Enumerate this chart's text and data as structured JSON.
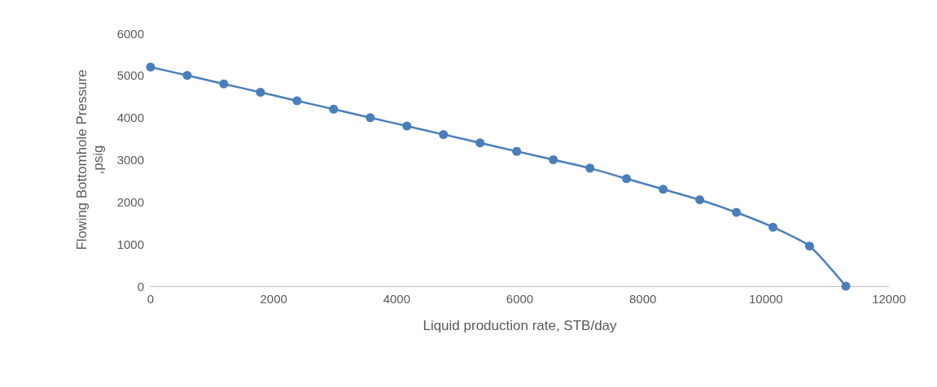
{
  "chart_data": {
    "type": "line",
    "xlabel": "Liquid production rate, STB/day",
    "ylabel": "Flowing Bottomhole Pressure\n,psig",
    "x": [
      0,
      595,
      1190,
      1785,
      2380,
      2975,
      3570,
      4165,
      4760,
      5355,
      5950,
      6545,
      7140,
      7735,
      8330,
      8925,
      9520,
      10115,
      10710,
      11300
    ],
    "series": [
      {
        "color": "#4a7ebb",
        "values": [
          5200,
          5000,
          4800,
          4600,
          4400,
          4200,
          4000,
          3800,
          3600,
          3400,
          3200,
          3000,
          2800,
          2550,
          2300,
          2050,
          1750,
          1400,
          950,
          0
        ]
      }
    ],
    "xlim": [
      0,
      12000
    ],
    "xticks": [
      0,
      2000,
      4000,
      6000,
      8000,
      10000,
      12000
    ],
    "ylim": [
      0,
      6000
    ],
    "yticks": [
      0,
      1000,
      2000,
      3000,
      4000,
      5000,
      6000
    ],
    "grid": false,
    "marker": "circle",
    "line_style": "solid"
  }
}
